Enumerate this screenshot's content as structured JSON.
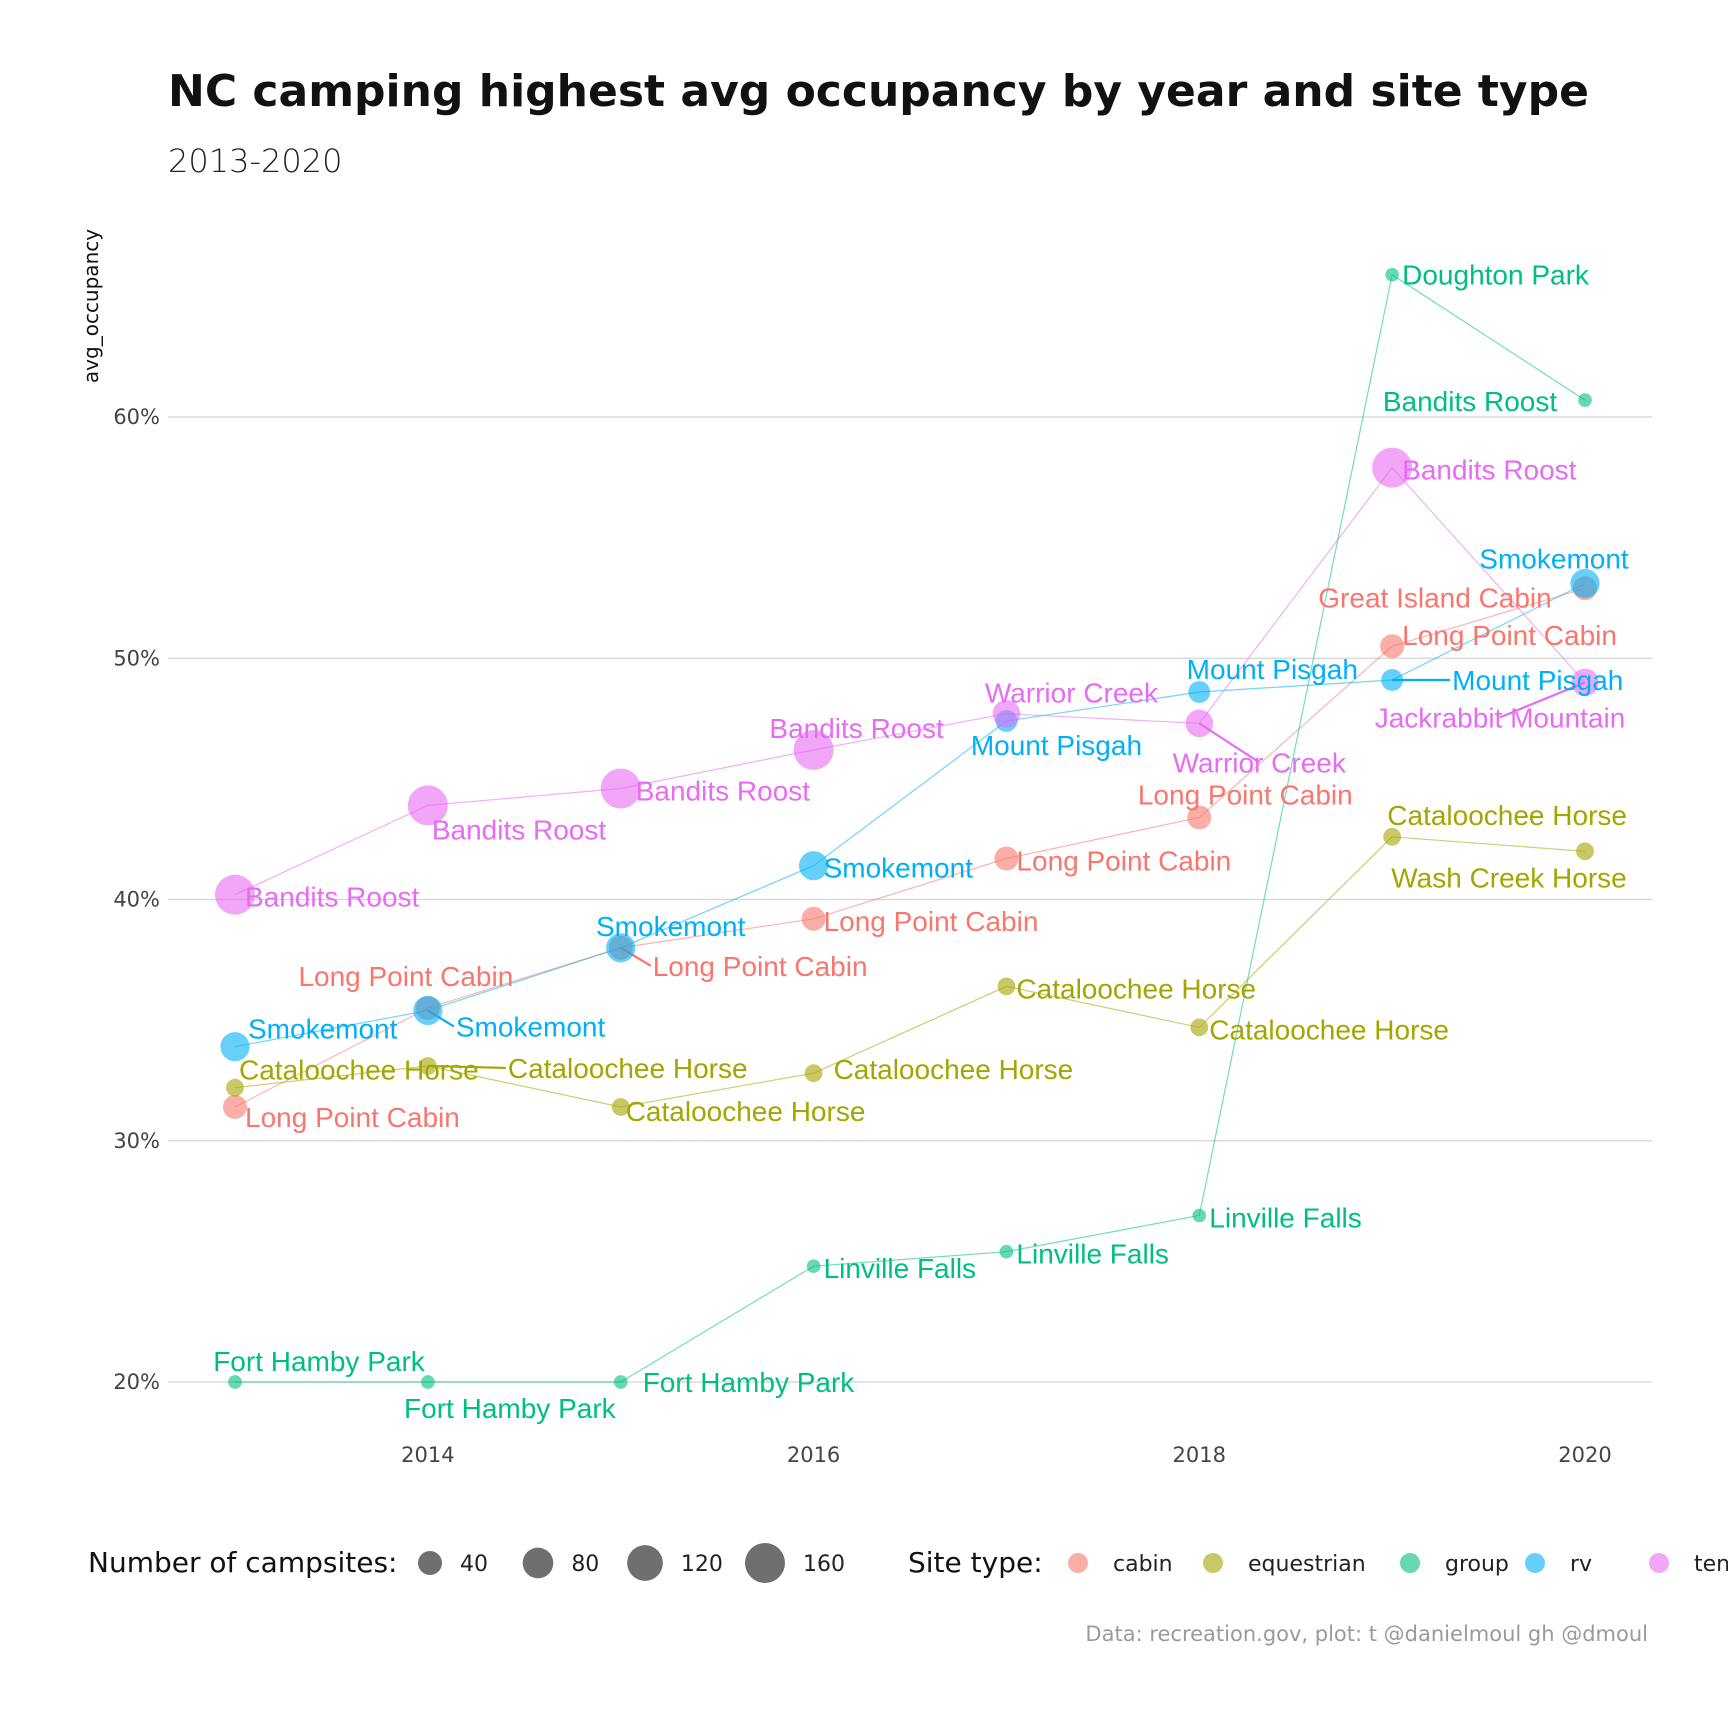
{
  "title": "NC camping highest avg occupancy by year and site type",
  "subtitle": "2013-2020",
  "caption": "Data: recreation.gov, plot: t @danielmoul gh @dmoul",
  "colors": {
    "cabin": "#F8766D",
    "equestrian": "#A3A500",
    "group": "#00BF7D",
    "rv": "#00B0F6",
    "tent": "#E76BF3"
  },
  "chart_data": {
    "type": "scatter",
    "title": "NC camping highest avg occupancy by year and site type",
    "subtitle": "2013-2020",
    "xlabel": "",
    "ylabel": "avg_occupancy",
    "xlim": [
      2012.8,
      2020.35
    ],
    "ylim": [
      0.16,
      0.71
    ],
    "x_ticks": [
      2014,
      2016,
      2018,
      2020
    ],
    "y_ticks": [
      0.2,
      0.3,
      0.4,
      0.5,
      0.6
    ],
    "y_tick_labels": [
      "20%",
      "30%",
      "40%",
      "50%",
      "60%"
    ],
    "grid": true,
    "legend_position": "bottom",
    "size_legend": {
      "title": "Number of campsites:",
      "values": [
        40,
        80,
        120,
        160
      ]
    },
    "color_legend": {
      "title": "Site type:",
      "items": [
        "cabin",
        "equestrian",
        "group",
        "rv",
        "tent"
      ]
    },
    "series": [
      {
        "name": "cabin",
        "points": [
          {
            "x": 2013,
            "y": 0.314,
            "size": 40,
            "label": "Long Point Cabin"
          },
          {
            "x": 2014,
            "y": 0.355,
            "size": 40,
            "label": "Long Point Cabin"
          },
          {
            "x": 2015,
            "y": 0.38,
            "size": 40,
            "label": "Long Point Cabin"
          },
          {
            "x": 2016,
            "y": 0.392,
            "size": 40,
            "label": "Long Point Cabin"
          },
          {
            "x": 2017,
            "y": 0.417,
            "size": 40,
            "label": "Long Point Cabin"
          },
          {
            "x": 2018,
            "y": 0.434,
            "size": 40,
            "label": "Long Point Cabin"
          },
          {
            "x": 2019,
            "y": 0.505,
            "size": 40,
            "label": "Long Point Cabin"
          },
          {
            "x": 2020,
            "y": 0.529,
            "size": 40,
            "label": "Great Island Cabin"
          }
        ]
      },
      {
        "name": "equestrian",
        "points": [
          {
            "x": 2013,
            "y": 0.322,
            "size": 15,
            "label": "Cataloochee Horse"
          },
          {
            "x": 2014,
            "y": 0.331,
            "size": 15,
            "label": "Cataloochee Horse"
          },
          {
            "x": 2015,
            "y": 0.314,
            "size": 15,
            "label": "Cataloochee Horse"
          },
          {
            "x": 2016,
            "y": 0.328,
            "size": 15,
            "label": "Cataloochee Horse"
          },
          {
            "x": 2017,
            "y": 0.364,
            "size": 15,
            "label": "Cataloochee Horse"
          },
          {
            "x": 2018,
            "y": 0.347,
            "size": 15,
            "label": "Cataloochee Horse"
          },
          {
            "x": 2019,
            "y": 0.426,
            "size": 15,
            "label": "Cataloochee Horse"
          },
          {
            "x": 2020,
            "y": 0.42,
            "size": 15,
            "label": "Wash Creek Horse"
          }
        ]
      },
      {
        "name": "group",
        "points": [
          {
            "x": 2013,
            "y": 0.2,
            "size": 5,
            "label": "Fort Hamby Park"
          },
          {
            "x": 2014,
            "y": 0.2,
            "size": 5,
            "label": "Fort Hamby Park"
          },
          {
            "x": 2015,
            "y": 0.2,
            "size": 5,
            "label": "Fort Hamby Park"
          },
          {
            "x": 2016,
            "y": 0.248,
            "size": 5,
            "label": "Linville Falls"
          },
          {
            "x": 2017,
            "y": 0.254,
            "size": 5,
            "label": "Linville Falls"
          },
          {
            "x": 2018,
            "y": 0.269,
            "size": 5,
            "label": "Linville Falls"
          },
          {
            "x": 2019,
            "y": 0.659,
            "size": 5,
            "label": "Doughton Park"
          },
          {
            "x": 2020,
            "y": 0.607,
            "size": 5,
            "label": "Bandits Roost"
          }
        ]
      },
      {
        "name": "rv",
        "points": [
          {
            "x": 2013,
            "y": 0.339,
            "size": 70,
            "label": "Smokemont"
          },
          {
            "x": 2014,
            "y": 0.354,
            "size": 70,
            "label": "Smokemont"
          },
          {
            "x": 2015,
            "y": 0.38,
            "size": 70,
            "label": "Smokemont"
          },
          {
            "x": 2016,
            "y": 0.414,
            "size": 70,
            "label": "Smokemont"
          },
          {
            "x": 2017,
            "y": 0.474,
            "size": 30,
            "label": "Mount Pisgah"
          },
          {
            "x": 2018,
            "y": 0.486,
            "size": 30,
            "label": "Mount Pisgah"
          },
          {
            "x": 2019,
            "y": 0.491,
            "size": 30,
            "label": "Mount Pisgah"
          },
          {
            "x": 2020,
            "y": 0.531,
            "size": 70,
            "label": "Smokemont"
          }
        ]
      },
      {
        "name": "tent",
        "points": [
          {
            "x": 2013,
            "y": 0.402,
            "size": 160,
            "label": "Bandits Roost"
          },
          {
            "x": 2014,
            "y": 0.439,
            "size": 160,
            "label": "Bandits Roost"
          },
          {
            "x": 2015,
            "y": 0.446,
            "size": 160,
            "label": "Bandits Roost"
          },
          {
            "x": 2016,
            "y": 0.462,
            "size": 160,
            "label": "Bandits Roost"
          },
          {
            "x": 2017,
            "y": 0.477,
            "size": 60,
            "label": "Warrior Creek"
          },
          {
            "x": 2018,
            "y": 0.473,
            "size": 60,
            "label": "Warrior Creek"
          },
          {
            "x": 2019,
            "y": 0.579,
            "size": 160,
            "label": "Bandits Roost"
          },
          {
            "x": 2020,
            "y": 0.49,
            "size": 60,
            "label": "Jackrabbit Mountain"
          }
        ]
      }
    ]
  }
}
